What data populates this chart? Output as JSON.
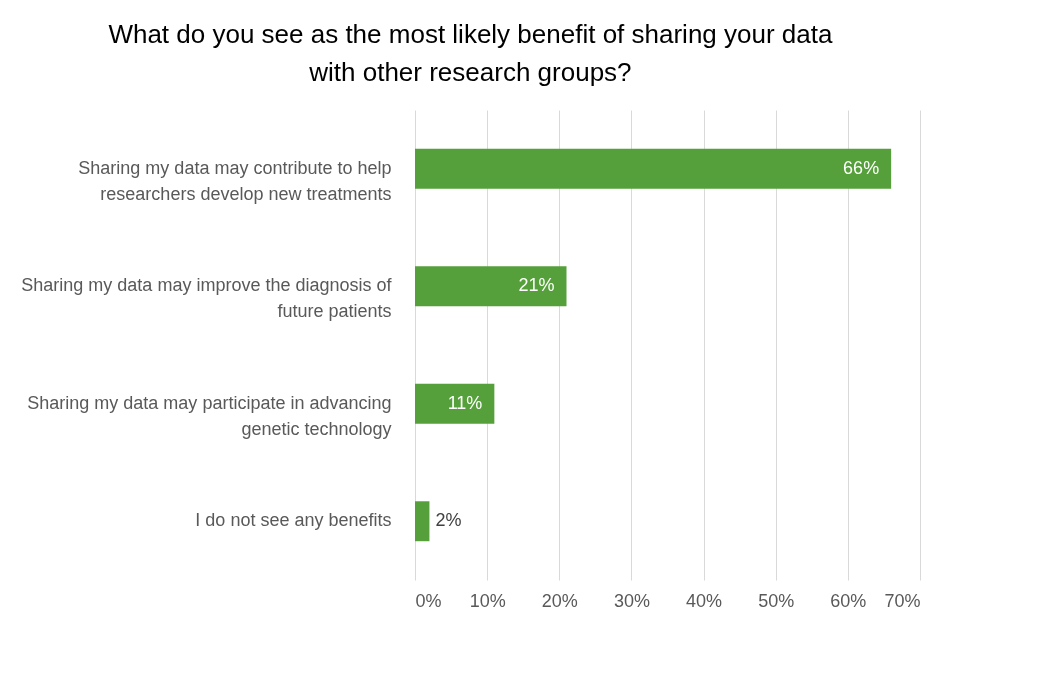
{
  "chart_data": {
    "type": "bar",
    "orientation": "horizontal",
    "title": "What do you see as the most likely benefit of sharing your data with other research groups?",
    "categories": [
      "Sharing my data may contribute to help researchers develop new treatments",
      "Sharing my data may improve the diagnosis of future patients",
      "Sharing my data may participate in advancing genetic technology",
      "I do not see any benefits"
    ],
    "values": [
      66,
      21,
      11,
      2
    ],
    "value_labels": [
      "66%",
      "21%",
      "11%",
      "2%"
    ],
    "color": "#55a03a",
    "xlim": [
      0,
      70
    ],
    "xticks": [
      {
        "value": 0,
        "label": "0%"
      },
      {
        "value": 10,
        "label": "10%"
      },
      {
        "value": 20,
        "label": "20%"
      },
      {
        "value": 30,
        "label": "30%"
      },
      {
        "value": 40,
        "label": "40%"
      },
      {
        "value": 50,
        "label": "50%"
      },
      {
        "value": 60,
        "label": "60%"
      },
      {
        "value": 70,
        "label": "70%"
      }
    ],
    "grid": "x"
  }
}
